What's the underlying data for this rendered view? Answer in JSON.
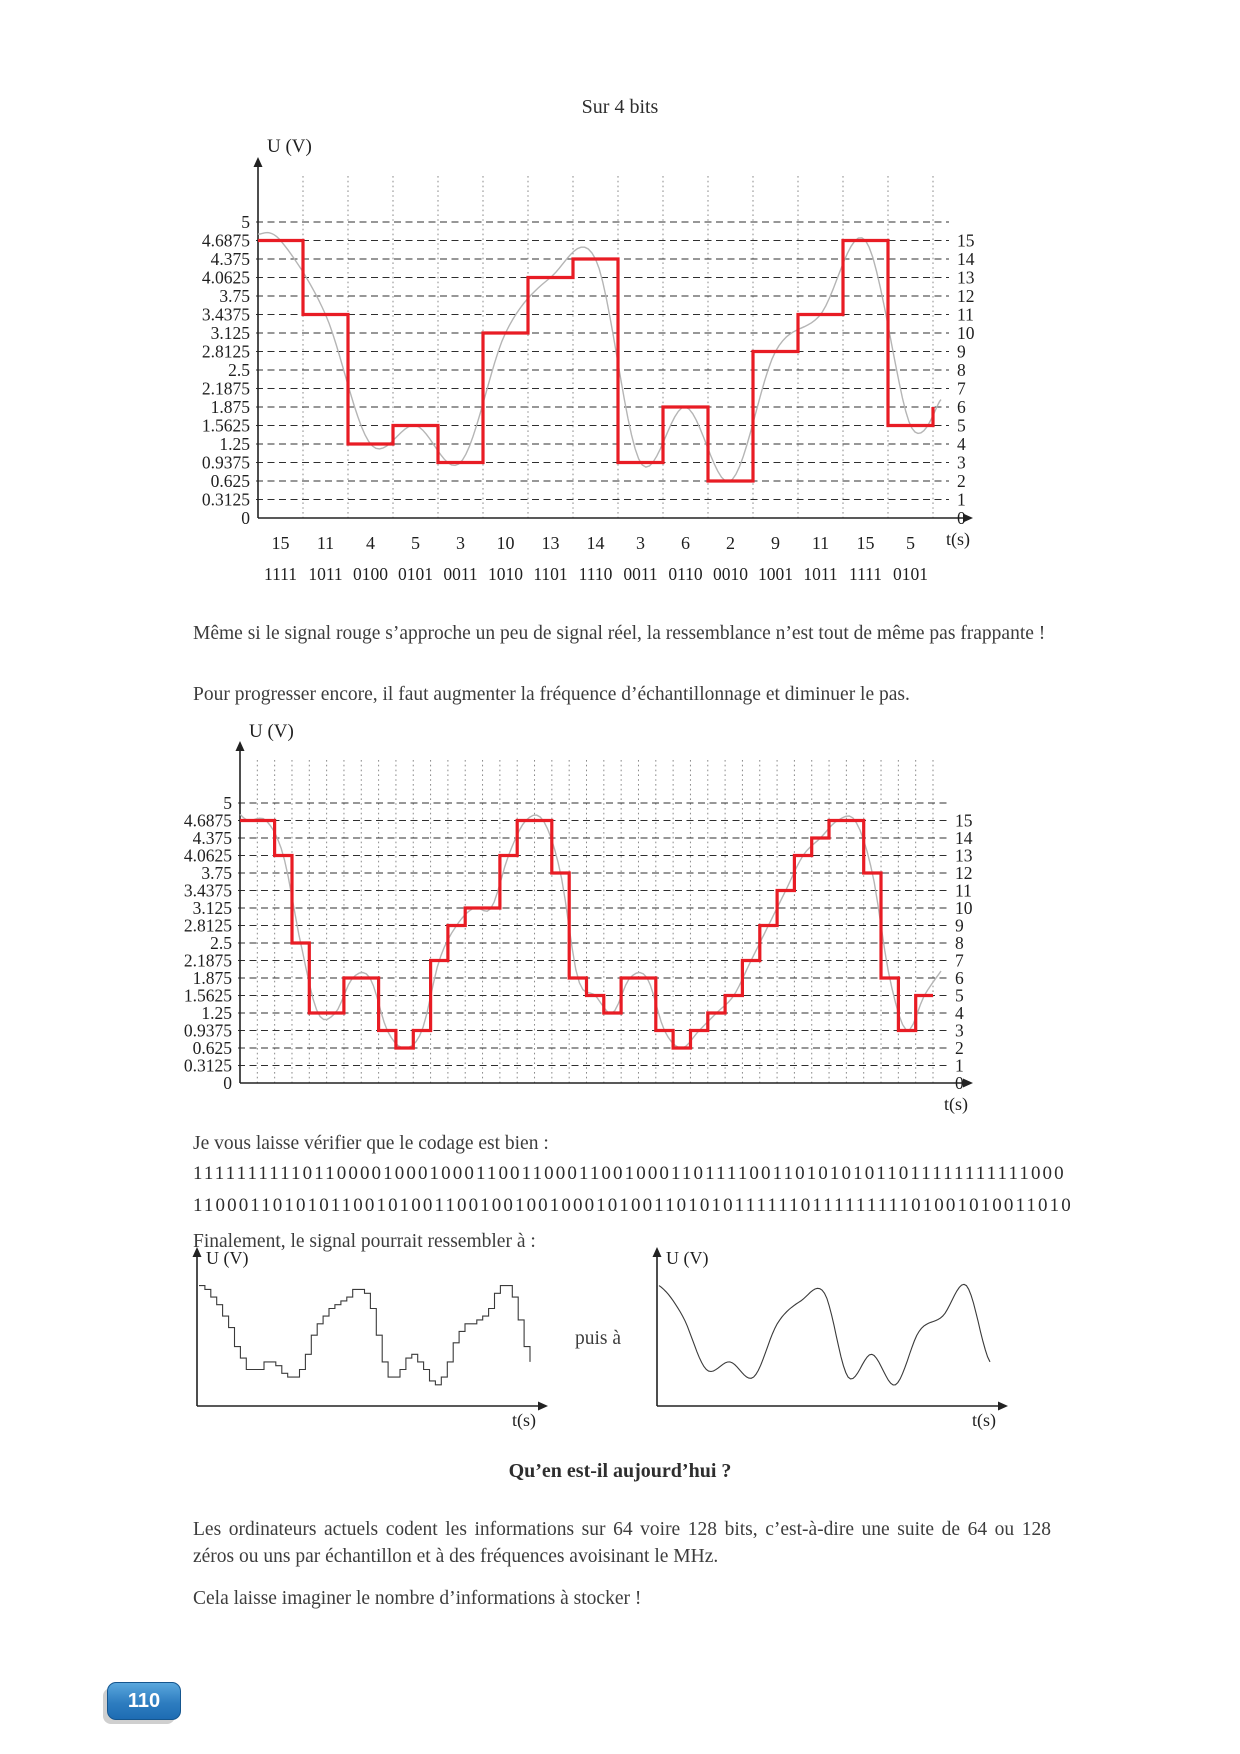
{
  "title": "Sur 4 bits",
  "colors": {
    "signal_red": "#e81c24",
    "real_signal_gray": "#b5b5b5",
    "text": "#3d3d3d",
    "badge_blue": "#2e7dc0"
  },
  "paragraphs": {
    "p1": "Même si le signal rouge s’approche un peu de signal réel, la ressemblance n’est tout de même pas frappante !",
    "p2": "Pour progresser encore, il faut augmenter la fréquence d’échantillonnage et diminuer le pas.",
    "coding_intro": "Je vous laisse vérifier que le codage est bien :",
    "binary_line1": "11111111110110000100010001100110001100100011011110011010101011011111111111000",
    "binary_line2": "11000110101011001010011001001001000101001101010111111011111111101001010011010",
    "finally": "Finalement, le signal pourrait ressembler à  :",
    "puis_a": "puis à",
    "heading2": "Qu’en est-il aujourd’hui ?",
    "p3": "Les ordinateurs actuels codent les informations sur 64 voire 128 bits, c’est-à-dire une suite de 64 ou 128 zéros ou uns par échantillon et à  des fréquences avoisinant le MHz.",
    "p4": "Cela laisse imaginer le nombre d’informations à  stocker !"
  },
  "page_number": "110",
  "chart_data": [
    {
      "id": "chart-4bits-pas-large",
      "type": "line",
      "title": "Sur 4 bits",
      "ylabel": "U (V)",
      "xlabel": "t(s)",
      "ylim": [
        0,
        5
      ],
      "quantum_volts": 0.3125,
      "grid": "horizontal dashed levels + vertical dotted sample columns",
      "y_tick_labels": [
        "5",
        "4.6875",
        "4.375",
        "4.0625",
        "3.75",
        "3.4375",
        "3.125",
        "2.8125",
        "2.5",
        "2.1875",
        "1.875",
        "1.5625",
        "1.25",
        "0.9375",
        "0.625",
        "0.3125",
        "0"
      ],
      "right_tick_labels": [
        "15",
        "14",
        "13",
        "12",
        "11",
        "10",
        "9",
        "8",
        "7",
        "6",
        "5",
        "4",
        "3",
        "2",
        "1",
        "0"
      ],
      "series": [
        {
          "name": "signal échantillonné (rouge)",
          "color": "#e81c24",
          "values": [
            15,
            11,
            4,
            5,
            3,
            10,
            13,
            14,
            3,
            6,
            2,
            9,
            11,
            15,
            5
          ]
        },
        {
          "name": "signal réel (gris)",
          "color": "#b5b5b5"
        }
      ],
      "sample_labels": [
        "15",
        "11",
        "4",
        "5",
        "3",
        "10",
        "13",
        "14",
        "3",
        "6",
        "2",
        "9",
        "11",
        "15",
        "5"
      ],
      "binary_labels": [
        "1111",
        "1011",
        "0100",
        "0101",
        "0011",
        "1010",
        "1101",
        "1110",
        "0011",
        "0110",
        "0010",
        "1001",
        "1011",
        "1111",
        "0101"
      ],
      "end_tick_level": 6
    },
    {
      "id": "chart-4bits-pas-fin",
      "type": "line",
      "ylabel": "U (V)",
      "xlabel": "t(s)",
      "ylim": [
        0,
        5
      ],
      "quantum_volts": 0.3125,
      "grid": "horizontal dashed levels + vertical dotted sample columns (pas fin)",
      "y_tick_labels": [
        "5",
        "4.6875",
        "4.375",
        "4.0625",
        "3.75",
        "3.4375",
        "3.125",
        "2.8125",
        "2.5",
        "2.1875",
        "1.875",
        "1.5625",
        "1.25",
        "0.9375",
        "0.625",
        "0.3125",
        "0"
      ],
      "right_tick_labels": [
        "15",
        "14",
        "13",
        "12",
        "11",
        "10",
        "9",
        "8",
        "7",
        "6",
        "5",
        "4",
        "3",
        "2",
        "1",
        "0"
      ],
      "series": [
        {
          "name": "signal échantillonné (rouge)",
          "color": "#e81c24",
          "values": [
            15,
            15,
            13,
            8,
            4,
            4,
            6,
            6,
            3,
            2,
            3,
            7,
            9,
            10,
            10,
            13,
            15,
            15,
            12,
            6,
            5,
            4,
            6,
            6,
            3,
            2,
            3,
            4,
            5,
            7,
            9,
            11,
            13,
            14,
            15,
            15,
            12,
            6,
            3,
            5
          ]
        },
        {
          "name": "signal réel (gris)",
          "color": "#b5b5b5"
        }
      ]
    },
    {
      "id": "mini-signal-numerise",
      "type": "line",
      "ylabel": "U (V)",
      "xlabel": "t(s)",
      "style": "fine-staircase",
      "description": "signal numérisé à pas très fin (mêmes échantillons que le signal de référence)"
    },
    {
      "id": "mini-signal-lisse",
      "type": "line",
      "ylabel": "U (V)",
      "xlabel": "t(s)",
      "style": "smooth",
      "description": "signal quasi analogique résultant"
    }
  ]
}
